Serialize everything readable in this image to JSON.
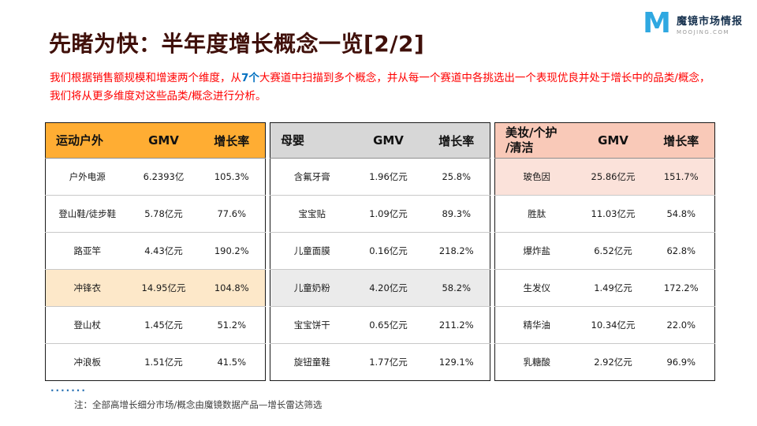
{
  "logo": {
    "mark": "M",
    "name": "魔镜市场情报",
    "domain": "MOOJING.COM"
  },
  "title": "先睹为快：半年度增长概念一览[2/2]",
  "intro": {
    "part1": "我们根据销售额规模和增速两个维度，从",
    "highlight": "7个",
    "part2": "大赛道中扫描到多个概念，并从每一个赛道中各挑选出一个表现优良并处于增长中的品类/概念，我们将从更多维度对这些品类/概念进行分析。"
  },
  "tables": [
    {
      "category": "运动户外",
      "col_gmv": "GMV",
      "col_growth": "增长率",
      "header_color": "#FFAD33",
      "highlight_color": "#FDE8C9",
      "highlight_row_index": 3,
      "rows": [
        {
          "name": "户外电源",
          "gmv": "6.2393亿",
          "growth": "105.3%"
        },
        {
          "name": "登山鞋/徒步鞋",
          "gmv": "5.78亿元",
          "growth": "77.6%"
        },
        {
          "name": "路亚竿",
          "gmv": "4.43亿元",
          "growth": "190.2%"
        },
        {
          "name": "冲锋衣",
          "gmv": "14.95亿元",
          "growth": "104.8%"
        },
        {
          "name": "登山杖",
          "gmv": "1.45亿元",
          "growth": "51.2%"
        },
        {
          "name": "冲浪板",
          "gmv": "1.51亿元",
          "growth": "41.5%"
        }
      ]
    },
    {
      "category": "母婴",
      "col_gmv": "GMV",
      "col_growth": "增长率",
      "header_color": "#D7D7D7",
      "highlight_color": "#EBEBEB",
      "highlight_row_index": 3,
      "rows": [
        {
          "name": "含氟牙膏",
          "gmv": "1.96亿元",
          "growth": "25.8%"
        },
        {
          "name": "宝宝贴",
          "gmv": "1.09亿元",
          "growth": "89.3%"
        },
        {
          "name": "儿童面膜",
          "gmv": "0.16亿元",
          "growth": "218.2%"
        },
        {
          "name": "儿童奶粉",
          "gmv": "4.20亿元",
          "growth": "58.2%"
        },
        {
          "name": "宝宝饼干",
          "gmv": "0.65亿元",
          "growth": "211.2%"
        },
        {
          "name": "旋钮童鞋",
          "gmv": "1.77亿元",
          "growth": "129.1%"
        }
      ]
    },
    {
      "category": "美妆/个护\n/清洁",
      "col_gmv": "GMV",
      "col_growth": "增长率",
      "header_color": "#F9C9B8",
      "highlight_color": "#FBE2DA",
      "highlight_row_index": 0,
      "rows": [
        {
          "name": "玻色因",
          "gmv": "25.86亿元",
          "growth": "151.7%"
        },
        {
          "name": "胜肽",
          "gmv": "11.03亿元",
          "growth": "54.8%"
        },
        {
          "name": "爆炸盐",
          "gmv": "6.52亿元",
          "growth": "62.8%"
        },
        {
          "name": "生发仪",
          "gmv": "1.49亿元",
          "growth": "172.2%"
        },
        {
          "name": "精华油",
          "gmv": "10.34亿元",
          "growth": "22.0%"
        },
        {
          "name": "乳糖酸",
          "gmv": "2.92亿元",
          "growth": "96.9%"
        }
      ]
    }
  ],
  "footnote": {
    "dots": "·······",
    "text": "注：全部高增长细分市场/概念由魔镜数据产品—增长雷达筛选"
  }
}
